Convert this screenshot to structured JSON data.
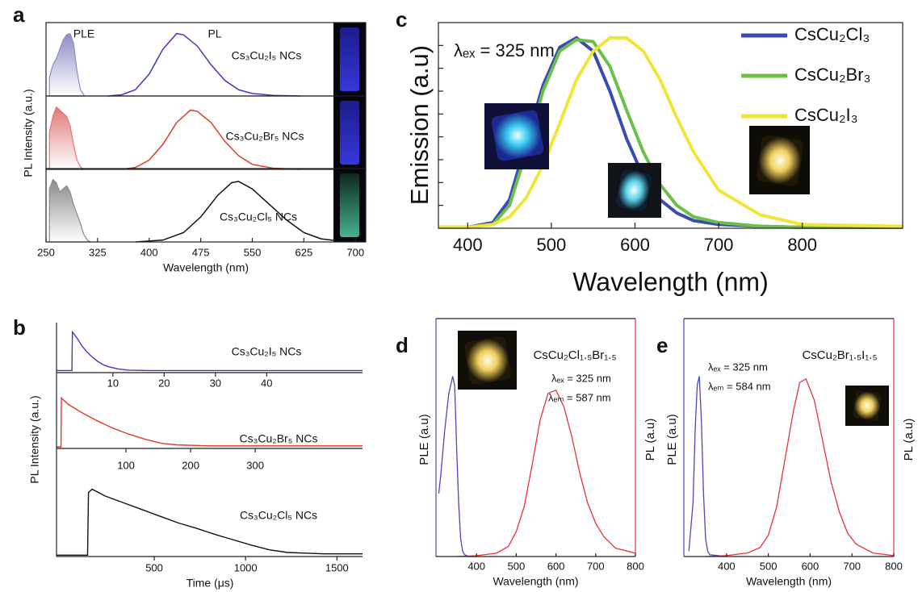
{
  "chart_data": [
    {
      "type": "stacked-spectra",
      "panel_label": "a",
      "xlabel": "Wavelength (nm)",
      "ylabel": "PL Intensity (a.u.)",
      "xlim": [
        250,
        715
      ],
      "xticks": [
        250,
        325,
        400,
        475,
        550,
        625,
        700
      ],
      "ylim": [
        0,
        1.15
      ],
      "annotations": [
        "PLE",
        "PL"
      ],
      "rows": [
        {
          "label": "Cs₃Cu₂I₅ NCs",
          "color": "#3c3cc0",
          "ple_color": "#8e8cc4",
          "ple": {
            "x": [
              255,
              260,
              265,
              270,
              275,
              280,
              285,
              290,
              295,
              300,
              305
            ],
            "values": [
              0.3,
              0.5,
              0.6,
              0.75,
              0.9,
              0.98,
              1.0,
              0.85,
              0.4,
              0.1,
              0.02
            ]
          },
          "pl": {
            "x": [
              340,
              360,
              380,
              400,
              420,
              440,
              450,
              470,
              490,
              510,
              530,
              550,
              580,
              620
            ],
            "values": [
              0,
              0.02,
              0.1,
              0.35,
              0.75,
              1.0,
              0.98,
              0.8,
              0.5,
              0.25,
              0.1,
              0.04,
              0.01,
              0
            ]
          }
        },
        {
          "label": "Cs₃Cu₂Br₅ NCs",
          "color": "#e03c28",
          "ple_color": "#e07878",
          "ple": {
            "x": [
              255,
              260,
              265,
              270,
              275,
              280,
              285,
              290,
              295,
              300,
              305
            ],
            "values": [
              0.6,
              0.85,
              1.0,
              0.95,
              0.9,
              0.85,
              0.7,
              0.4,
              0.15,
              0.04,
              0
            ]
          },
          "pl": {
            "x": [
              360,
              380,
              400,
              420,
              440,
              460,
              470,
              490,
              510,
              530,
              550,
              580,
              620
            ],
            "values": [
              0,
              0.03,
              0.15,
              0.4,
              0.75,
              0.95,
              0.93,
              0.75,
              0.45,
              0.22,
              0.08,
              0.02,
              0
            ]
          }
        },
        {
          "label": "Cs₃Cu₂Cl₅ NCs",
          "color": "#111111",
          "ple_color": "#8a8a8a",
          "ple": {
            "x": [
              255,
              260,
              265,
              270,
              275,
              280,
              285,
              290,
              295,
              300,
              305,
              310,
              315
            ],
            "values": [
              0.85,
              1.0,
              0.95,
              0.8,
              0.85,
              0.9,
              0.8,
              0.6,
              0.45,
              0.3,
              0.12,
              0.03,
              0
            ]
          },
          "pl": {
            "x": [
              380,
              420,
              450,
              475,
              500,
              520,
              530,
              550,
              575,
              600,
              625,
              650,
              680
            ],
            "values": [
              0,
              0.03,
              0.15,
              0.4,
              0.75,
              0.95,
              0.97,
              0.85,
              0.6,
              0.35,
              0.15,
              0.05,
              0.01
            ]
          }
        }
      ]
    },
    {
      "type": "decay",
      "panel_label": "b",
      "xlabel": "Time (μs)",
      "ylabel": "PL Intensity (a.u.)",
      "ylim": [
        0,
        1.15
      ],
      "rows": [
        {
          "label": "Cs₃Cu₂I₅ NCs",
          "color": "#3c3cc0",
          "xlim": [
            -1,
            58.7
          ],
          "xticks": [
            10,
            20,
            30,
            40
          ],
          "x": [
            -1,
            2,
            2.1,
            3,
            4,
            5,
            6,
            7,
            8,
            9,
            11,
            13,
            17,
            27,
            40,
            58.7
          ],
          "values": [
            0.05,
            0.05,
            1.0,
            0.85,
            0.65,
            0.5,
            0.38,
            0.28,
            0.2,
            0.15,
            0.09,
            0.06,
            0.05,
            0.05,
            0.05,
            0.05
          ]
        },
        {
          "label": "Cs₃Cu₂Br₅ NCs",
          "color": "#e03c28",
          "xlim": [
            -7.5,
            466
          ],
          "xticks": [
            100,
            200,
            300
          ],
          "x": [
            -7.5,
            -0.5,
            0,
            10,
            30,
            55,
            80,
            105,
            130,
            155,
            180,
            230,
            280,
            466
          ],
          "values": [
            0.03,
            0.03,
            1.0,
            0.88,
            0.72,
            0.55,
            0.4,
            0.28,
            0.18,
            0.1,
            0.07,
            0.05,
            0.05,
            0.05
          ]
        },
        {
          "label": "Cs₃Cu₂Cl₅ NCs",
          "color": "#111111",
          "xlim": [
            -35,
            1640
          ],
          "xticks": [
            500,
            1000,
            1500
          ],
          "x": [
            -35,
            135,
            140,
            160,
            230,
            330,
            430,
            530,
            630,
            730,
            830,
            930,
            1030,
            1130,
            1230,
            1430,
            1640
          ],
          "values": [
            0.02,
            0.02,
            0.95,
            1.0,
            0.9,
            0.8,
            0.7,
            0.6,
            0.5,
            0.42,
            0.33,
            0.25,
            0.17,
            0.1,
            0.06,
            0.04,
            0.04
          ]
        }
      ]
    },
    {
      "type": "line",
      "panel_label": "c",
      "xlabel": "Wavelength (nm)",
      "ylabel": "Emission (a.u)",
      "annotation": "λₑₓ = 325 nm",
      "xlim": [
        365,
        920
      ],
      "xticks": [
        400,
        500,
        600,
        700,
        800
      ],
      "ylim": [
        0,
        1.08
      ],
      "legend": "upper right",
      "x": [
        365,
        400,
        430,
        450,
        470,
        490,
        510,
        530,
        550,
        570,
        590,
        610,
        630,
        650,
        670,
        700,
        750,
        800,
        920
      ],
      "series": [
        {
          "name": "CsCu₂Cl₃",
          "color": "#3a4cb4",
          "values": [
            0.005,
            0.005,
            0.03,
            0.15,
            0.45,
            0.75,
            0.95,
            1.0,
            0.93,
            0.72,
            0.47,
            0.27,
            0.15,
            0.08,
            0.04,
            0.02,
            0.01,
            0.005,
            0.005
          ]
        },
        {
          "name": "CsCu₂Br₃",
          "color": "#6cc04a",
          "values": [
            0.005,
            0.005,
            0.02,
            0.12,
            0.4,
            0.72,
            0.93,
            0.99,
            0.98,
            0.85,
            0.62,
            0.4,
            0.23,
            0.12,
            0.06,
            0.03,
            0.01,
            0.005,
            0.005
          ]
        },
        {
          "name": "CsCu₂I₃",
          "color": "#f0e63a",
          "values": [
            0.005,
            0.005,
            0.02,
            0.06,
            0.16,
            0.33,
            0.55,
            0.78,
            0.93,
            1.0,
            1.0,
            0.93,
            0.78,
            0.58,
            0.4,
            0.2,
            0.07,
            0.02,
            0.01
          ]
        }
      ]
    },
    {
      "type": "dual",
      "panel_label": "d",
      "title": "CsCu₂Cl₁.₅Br₁.₅",
      "title_color": "#e8323c",
      "annotations": [
        {
          "text": "λₑₓ = 325 nm",
          "color": "#e8323c"
        },
        {
          "text": "λₑₘ = 587 nm",
          "color": "#4a4ab8"
        }
      ],
      "xlabel": "Wavelength (nm)",
      "ylabel": "PLE (a.u)",
      "y2label": "PL (a.u)",
      "xlim": [
        298,
        800
      ],
      "xticks": [
        400,
        500,
        600,
        700,
        800
      ],
      "ylim": [
        0,
        1.32
      ],
      "y2lim": [
        0,
        1.43
      ],
      "series": [
        {
          "color": "#4a4ab8",
          "x": [
            305,
            310,
            320,
            330,
            340,
            345,
            350,
            355,
            360,
            365,
            370,
            380,
            400
          ],
          "values": [
            0.35,
            0.45,
            0.7,
            0.9,
            1.0,
            0.95,
            0.6,
            0.3,
            0.1,
            0.03,
            0.01,
            0,
            0
          ]
        },
        {
          "color": "#e8323c",
          "axis": "y2",
          "x": [
            350,
            400,
            450,
            480,
            500,
            520,
            540,
            560,
            580,
            600,
            620,
            640,
            660,
            680,
            700,
            720,
            750,
            800
          ],
          "values": [
            0,
            0.005,
            0.02,
            0.06,
            0.15,
            0.3,
            0.55,
            0.82,
            0.98,
            1.0,
            0.9,
            0.72,
            0.5,
            0.32,
            0.2,
            0.12,
            0.05,
            0.02
          ]
        }
      ]
    },
    {
      "type": "dual",
      "panel_label": "e",
      "title": "CsCu₂Br₁.₅I₁.₅",
      "title_color": "#e8323c",
      "annotations": [
        {
          "text": "λₑₓ = 325 nm",
          "color": "#e8323c"
        },
        {
          "text": "λₑₘ = 584 nm",
          "color": "#4a4ab8"
        }
      ],
      "xlabel": "Wavelength (nm)",
      "ylabel": "PLE (a.u)",
      "y2label": "PL (a.u)",
      "xlim": [
        298,
        800
      ],
      "xticks": [
        400,
        500,
        600,
        700,
        800
      ],
      "ylim": [
        0,
        1.32
      ],
      "y2lim": [
        0,
        1.34
      ],
      "series": [
        {
          "color": "#4a4ab8",
          "x": [
            310,
            320,
            325,
            330,
            335,
            340,
            345,
            350,
            355,
            360,
            400
          ],
          "values": [
            0.03,
            0.3,
            0.7,
            0.95,
            1.0,
            0.75,
            0.35,
            0.1,
            0.03,
            0.01,
            0
          ]
        },
        {
          "color": "#e8323c",
          "axis": "y2",
          "x": [
            350,
            400,
            450,
            480,
            500,
            520,
            540,
            560,
            575,
            590,
            610,
            630,
            650,
            670,
            690,
            710,
            750,
            800
          ],
          "values": [
            0,
            0.005,
            0.02,
            0.05,
            0.12,
            0.28,
            0.55,
            0.82,
            0.98,
            1.0,
            0.88,
            0.65,
            0.42,
            0.25,
            0.13,
            0.07,
            0.02,
            0.005
          ]
        }
      ]
    }
  ]
}
